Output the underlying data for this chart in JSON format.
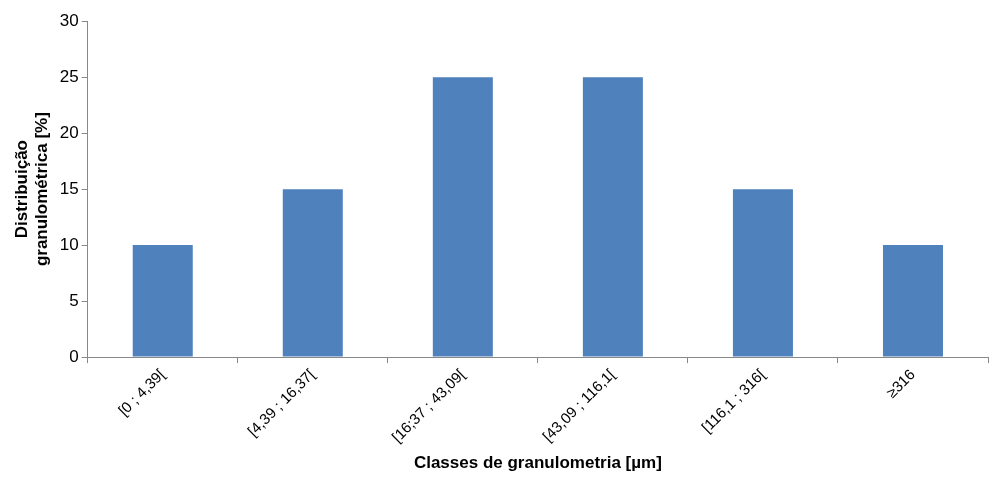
{
  "chart_data": {
    "type": "bar",
    "xlabel": "Classes de granulometria [µm]",
    "ylabel": "Distribuição\ngranulométrica [%]",
    "categories": [
      "[0 ; 4,39[",
      "[4,39 ; 16,37[",
      "[16;37 ; 43,09[",
      "[43,09 ; 116,1[",
      "[116,1 ; 316[",
      "≥316"
    ],
    "values": [
      10,
      15,
      25,
      25,
      15,
      10
    ],
    "color": "#4f81bd",
    "ylim": [
      0,
      30
    ],
    "yticks": [
      0,
      5,
      10,
      15,
      20,
      25,
      30
    ],
    "grid": false,
    "legend": false
  }
}
